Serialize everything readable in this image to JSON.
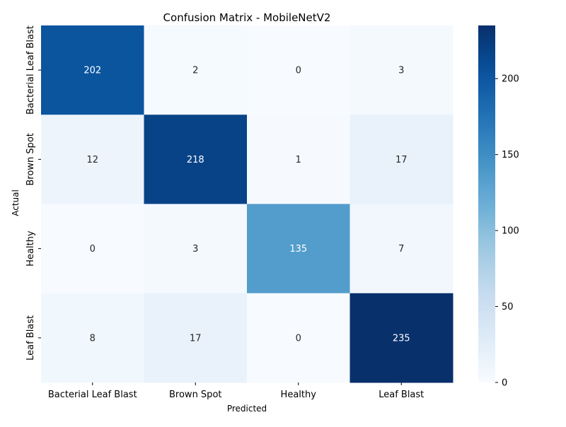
{
  "chart_data": {
    "type": "heatmap",
    "title": "Confusion Matrix - MobileNetV2",
    "xlabel": "Predicted",
    "ylabel": "Actual",
    "x_categories": [
      "Bacterial Leaf Blast",
      "Brown Spot",
      "Healthy",
      "Leaf Blast"
    ],
    "y_categories": [
      "Bacterial Leaf Blast",
      "Brown Spot",
      "Healthy",
      "Leaf Blast"
    ],
    "values": [
      [
        202,
        2,
        0,
        3
      ],
      [
        12,
        218,
        1,
        17
      ],
      [
        0,
        3,
        135,
        7
      ],
      [
        8,
        17,
        0,
        235
      ]
    ],
    "colormap": "Blues",
    "vmin": 0,
    "vmax": 235,
    "colorbar_ticks": [
      0,
      50,
      100,
      150,
      200
    ],
    "annotations": true,
    "grid": false
  }
}
